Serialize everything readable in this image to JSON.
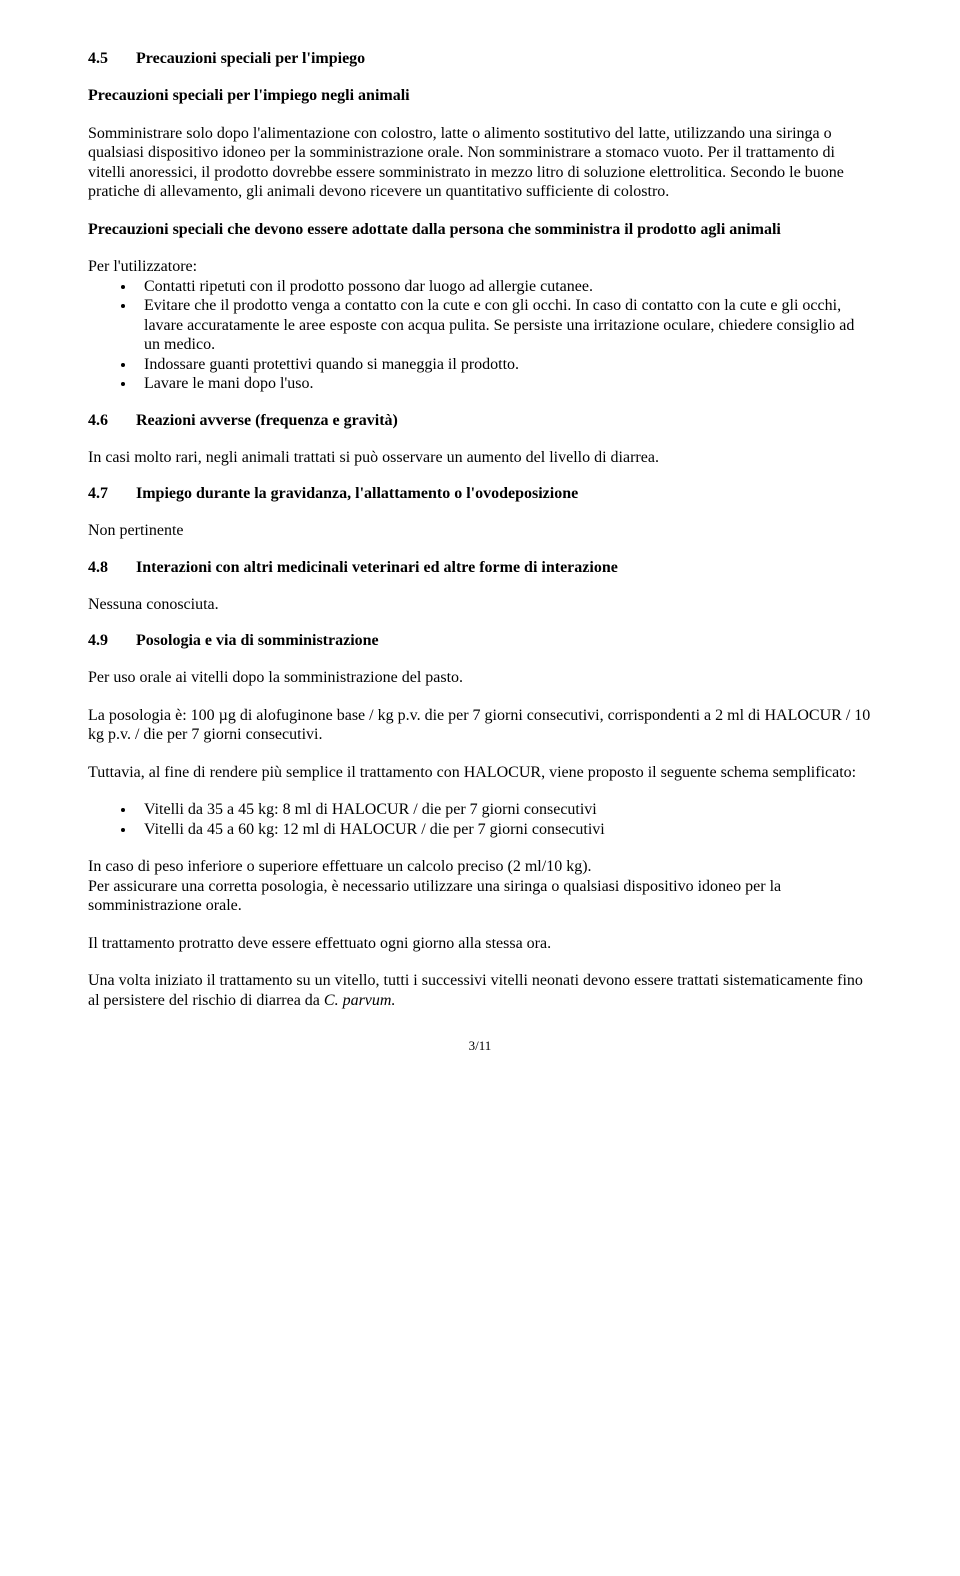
{
  "section45": {
    "heading_num": "4.5",
    "heading_text": "Precauzioni speciali per l'impiego",
    "sub1_heading": "Precauzioni speciali per l'impiego negli animali",
    "sub1_para": "Somministrare solo dopo l'alimentazione con colostro, latte o alimento sostitutivo del latte, utilizzando una siringa o qualsiasi dispositivo idoneo per la somministrazione orale. Non somministrare a stomaco vuoto. Per il trattamento di vitelli anoressici, il prodotto dovrebbe essere somministrato in mezzo litro di soluzione elettrolitica. Secondo le buone pratiche di allevamento, gli animali devono ricevere un quantitativo sufficiente di colostro.",
    "sub2_heading": "Precauzioni speciali che devono essere adottate dalla persona che somministra il prodotto agli animali",
    "sub2_intro": "Per l'utilizzatore:",
    "sub2_items": [
      "Contatti ripetuti con il prodotto possono dar luogo ad allergie cutanee.",
      "Evitare che il prodotto venga a contatto con la cute e con gli occhi. In caso di contatto con la cute e gli occhi, lavare accuratamente le aree esposte con acqua pulita. Se persiste una irritazione oculare, chiedere consiglio ad un medico.",
      "Indossare guanti protettivi quando si maneggia il prodotto.",
      "Lavare le mani dopo l'uso."
    ]
  },
  "section46": {
    "heading_num": "4.6",
    "heading_text": "Reazioni avverse (frequenza e gravità)",
    "para": "In casi molto rari, negli animali trattati si può osservare un aumento del livello di diarrea."
  },
  "section47": {
    "heading_num": "4.7",
    "heading_text": "Impiego durante la gravidanza, l'allattamento o l'ovodeposizione",
    "para": "Non pertinente"
  },
  "section48": {
    "heading_num": "4.8",
    "heading_text": "Interazioni con altri medicinali veterinari ed altre forme di interazione",
    "para": "Nessuna conosciuta."
  },
  "section49": {
    "heading_num": "4.9",
    "heading_text": "Posologia e via di somministrazione",
    "para1": "Per uso orale ai vitelli dopo la somministrazione del pasto.",
    "para2": "La posologia è: 100 µg di alofuginone base / kg p.v. die per 7 giorni consecutivi, corrispondenti a 2 ml di HALOCUR / 10 kg p.v. / die per 7 giorni consecutivi.",
    "para3": "Tuttavia, al fine di rendere più semplice il trattamento con HALOCUR, viene proposto il seguente schema semplificato:",
    "items": [
      "Vitelli da 35 a 45 kg: 8 ml di HALOCUR / die per 7 giorni consecutivi",
      "Vitelli da 45 a 60 kg: 12 ml di HALOCUR / die per 7 giorni consecutivi"
    ],
    "para4": "In caso di peso inferiore o superiore effettuare un calcolo preciso (2 ml/10 kg).",
    "para5": "Per assicurare una corretta posologia, è necessario utilizzare una siringa o qualsiasi dispositivo idoneo per la somministrazione orale.",
    "para6": "Il trattamento protratto deve essere effettuato ogni giorno alla stessa ora.",
    "para7_pre": "Una volta iniziato il trattamento su un vitello, tutti i successivi vitelli neonati devono essere trattati sistematicamente fino al persistere del rischio di diarrea da ",
    "para7_italic": "C. parvum.",
    "page_number": "3/11"
  }
}
